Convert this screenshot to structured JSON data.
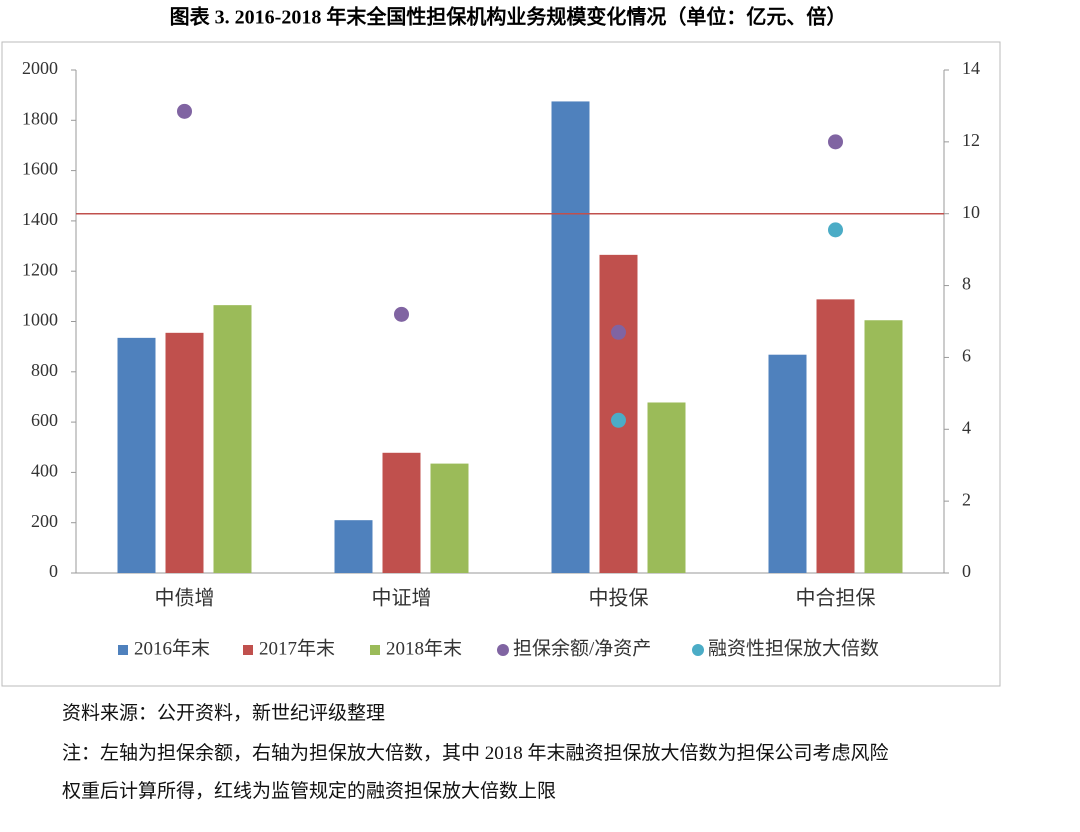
{
  "chart_data": {
    "type": "bar",
    "title": "图表 3. 2016-2018 年末全国性担保机构业务规模变化情况（单位：亿元、倍）",
    "categories": [
      "中债增",
      "中证增",
      "中投保",
      "中合担保"
    ],
    "series": [
      {
        "name": "2016年末",
        "color": "#4f81bd",
        "values": [
          935,
          210,
          1875,
          868
        ]
      },
      {
        "name": "2017年末",
        "color": "#c0504d",
        "values": [
          955,
          478,
          1265,
          1088
        ]
      },
      {
        "name": "2018年末",
        "color": "#9bbb59",
        "values": [
          1065,
          435,
          678,
          1005
        ]
      },
      {
        "name": "担保余额/净资产",
        "type": "scatter",
        "axis": "y2",
        "color": "#8064a2",
        "values": [
          12.85,
          7.2,
          6.7,
          12.0
        ]
      },
      {
        "name": "融资性担保放大倍数",
        "type": "scatter",
        "axis": "y2",
        "color": "#4bacc6",
        "values": [
          null,
          null,
          4.25,
          9.55
        ]
      }
    ],
    "reference_line": {
      "axis": "y2",
      "value": 10,
      "color": "#c0504d"
    },
    "ylim": [
      0,
      2000
    ],
    "yticks": [
      0,
      200,
      400,
      600,
      800,
      1000,
      1200,
      1400,
      1600,
      1800,
      2000
    ],
    "y2lim": [
      0,
      14
    ],
    "y2ticks": [
      0,
      2,
      4,
      6,
      8,
      10,
      12,
      14
    ],
    "legend": "bottom"
  },
  "source": "资料来源：公开资料，新世纪评级整理",
  "notes": [
    "注：左轴为担保余额，右轴为担保放大倍数，其中 2018 年末融资担保放大倍数为担保公司考虑风险",
    "权重后计算所得，红线为监管规定的融资担保放大倍数上限"
  ]
}
